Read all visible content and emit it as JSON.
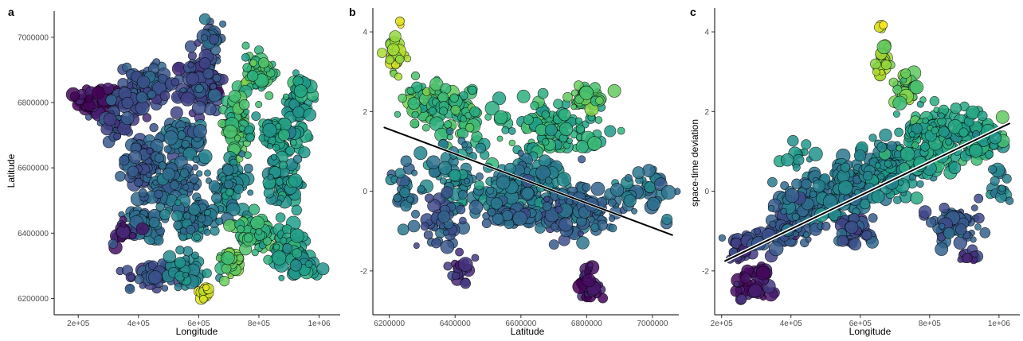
{
  "chart_data": [
    {
      "panel": "a",
      "type": "scatter",
      "xlabel": "Longitude",
      "ylabel": "Latitude",
      "xlim": [
        120000,
        1070000
      ],
      "ylim": [
        6150000,
        7080000
      ],
      "xticks": [
        200000,
        400000,
        600000,
        800000,
        1000000
      ],
      "xtick_labels": [
        "2e+05",
        "4e+05",
        "6e+05",
        "8e+05",
        "1e+06"
      ],
      "yticks": [
        6200000,
        6400000,
        6600000,
        6800000,
        7000000
      ],
      "ytick_labels": [
        "6200000",
        "6400000",
        "6600000",
        "6800000",
        "7000000"
      ],
      "color_scale": "viridis (by space-time deviation, -2.8 to 4.3)",
      "legend": "none",
      "grid": false,
      "groups": [
        {
          "x": 270000,
          "y": 6810000,
          "dx": 70000,
          "dy": 40000,
          "n": 55,
          "v": -2.6
        },
        {
          "x": 380000,
          "y": 6830000,
          "dx": 50000,
          "dy": 60000,
          "n": 45,
          "v": -1.3
        },
        {
          "x": 330000,
          "y": 6730000,
          "dx": 50000,
          "dy": 40000,
          "n": 40,
          "v": -1.1
        },
        {
          "x": 440000,
          "y": 6850000,
          "dx": 70000,
          "dy": 50000,
          "n": 55,
          "v": -1.0
        },
        {
          "x": 600000,
          "y": 6860000,
          "dx": 80000,
          "dy": 80000,
          "n": 120,
          "v": -1.2
        },
        {
          "x": 640000,
          "y": 7000000,
          "dx": 30000,
          "dy": 50000,
          "n": 30,
          "v": -0.6
        },
        {
          "x": 800000,
          "y": 6890000,
          "dx": 60000,
          "dy": 60000,
          "n": 60,
          "v": 2.0
        },
        {
          "x": 930000,
          "y": 6800000,
          "dx": 50000,
          "dy": 70000,
          "n": 40,
          "v": 1.0
        },
        {
          "x": 730000,
          "y": 6720000,
          "dx": 40000,
          "dy": 80000,
          "n": 70,
          "v": 2.1
        },
        {
          "x": 860000,
          "y": 6700000,
          "dx": 80000,
          "dy": 60000,
          "n": 60,
          "v": 1.2
        },
        {
          "x": 560000,
          "y": 6680000,
          "dx": 70000,
          "dy": 60000,
          "n": 70,
          "v": -0.3
        },
        {
          "x": 420000,
          "y": 6620000,
          "dx": 50000,
          "dy": 80000,
          "n": 70,
          "v": -0.9
        },
        {
          "x": 520000,
          "y": 6550000,
          "dx": 80000,
          "dy": 60000,
          "n": 80,
          "v": -0.4
        },
        {
          "x": 700000,
          "y": 6550000,
          "dx": 60000,
          "dy": 80000,
          "n": 80,
          "v": 0.3
        },
        {
          "x": 880000,
          "y": 6560000,
          "dx": 60000,
          "dy": 90000,
          "n": 60,
          "v": 0.9
        },
        {
          "x": 430000,
          "y": 6440000,
          "dx": 60000,
          "dy": 60000,
          "n": 55,
          "v": -0.3
        },
        {
          "x": 600000,
          "y": 6450000,
          "dx": 80000,
          "dy": 60000,
          "n": 70,
          "v": 0.1
        },
        {
          "x": 790000,
          "y": 6400000,
          "dx": 60000,
          "dy": 50000,
          "n": 70,
          "v": 1.8
        },
        {
          "x": 900000,
          "y": 6350000,
          "dx": 60000,
          "dy": 60000,
          "n": 55,
          "v": 1.3
        },
        {
          "x": 350000,
          "y": 6400000,
          "dx": 30000,
          "dy": 30000,
          "n": 25,
          "v": -2.1
        },
        {
          "x": 450000,
          "y": 6270000,
          "dx": 80000,
          "dy": 40000,
          "n": 45,
          "v": -1.1
        },
        {
          "x": 560000,
          "y": 6290000,
          "dx": 60000,
          "dy": 50000,
          "n": 40,
          "v": 0.5
        },
        {
          "x": 700000,
          "y": 6310000,
          "dx": 30000,
          "dy": 40000,
          "n": 30,
          "v": 2.6
        },
        {
          "x": 620000,
          "y": 6220000,
          "dx": 20000,
          "dy": 20000,
          "n": 18,
          "v": 3.9
        },
        {
          "x": 940000,
          "y": 6300000,
          "dx": 40000,
          "dy": 30000,
          "n": 25,
          "v": 1.0
        },
        {
          "x": 950000,
          "y": 6850000,
          "dx": 30000,
          "dy": 30000,
          "n": 20,
          "v": 1.4
        }
      ]
    },
    {
      "panel": "b",
      "type": "scatter",
      "xlabel": "Latitude",
      "ylabel": "",
      "xlim": [
        6150000,
        7080000
      ],
      "ylim": [
        -3.1,
        4.6
      ],
      "xticks": [
        6200000,
        6400000,
        6600000,
        6800000,
        7000000
      ],
      "xtick_labels": [
        "6200000",
        "6400000",
        "6600000",
        "6800000",
        "7000000"
      ],
      "yticks": [
        -2,
        0,
        2,
        4
      ],
      "ytick_labels": [
        "-2",
        "0",
        "2",
        "4"
      ],
      "trend_line": {
        "x": [
          6185000,
          7060000
        ],
        "y": [
          1.6,
          -1.1
        ]
      },
      "legend": "none",
      "grid": false,
      "groups": [
        {
          "x": 6220000,
          "y": 3.4,
          "dx": 25000,
          "dy": 0.5,
          "n": 30,
          "v": 3.4
        },
        {
          "x": 6235000,
          "y": 4.2,
          "dx": 5000,
          "dy": 0.1,
          "n": 3,
          "v": 4.2
        },
        {
          "x": 6310000,
          "y": 2.2,
          "dx": 60000,
          "dy": 0.6,
          "n": 70,
          "v": 2.1
        },
        {
          "x": 6420000,
          "y": 1.9,
          "dx": 70000,
          "dy": 0.6,
          "n": 60,
          "v": 1.9
        },
        {
          "x": 6700000,
          "y": 1.6,
          "dx": 150000,
          "dy": 0.6,
          "n": 120,
          "v": 1.6
        },
        {
          "x": 6420000,
          "y": 0.4,
          "dx": 90000,
          "dy": 0.7,
          "n": 70,
          "v": 0.4
        },
        {
          "x": 6620000,
          "y": 0.1,
          "dx": 120000,
          "dy": 0.6,
          "n": 130,
          "v": 0.1
        },
        {
          "x": 6760000,
          "y": -0.5,
          "dx": 120000,
          "dy": 0.6,
          "n": 130,
          "v": -0.5
        },
        {
          "x": 6980000,
          "y": 0.0,
          "dx": 70000,
          "dy": 0.5,
          "n": 40,
          "v": 0.0
        },
        {
          "x": 6250000,
          "y": 0.0,
          "dx": 40000,
          "dy": 0.8,
          "n": 30,
          "v": 0.0
        },
        {
          "x": 6360000,
          "y": -0.8,
          "dx": 60000,
          "dy": 0.5,
          "n": 40,
          "v": -0.8
        },
        {
          "x": 6560000,
          "y": -0.6,
          "dx": 80000,
          "dy": 0.3,
          "n": 40,
          "v": -0.6
        },
        {
          "x": 6420000,
          "y": -1.9,
          "dx": 30000,
          "dy": 0.3,
          "n": 20,
          "v": -1.9
        },
        {
          "x": 6810000,
          "y": -2.3,
          "dx": 30000,
          "dy": 0.4,
          "n": 35,
          "v": -2.3
        },
        {
          "x": 6800000,
          "y": 2.3,
          "dx": 80000,
          "dy": 0.3,
          "n": 30,
          "v": 2.3
        }
      ]
    },
    {
      "panel": "c",
      "type": "scatter",
      "xlabel": "Longitude",
      "ylabel": "space-time deviation",
      "xlim": [
        180000,
        1060000
      ],
      "ylim": [
        -3.1,
        4.6
      ],
      "xticks": [
        200000,
        400000,
        600000,
        800000,
        1000000
      ],
      "xtick_labels": [
        "2e+05",
        "4e+05",
        "6e+05",
        "8e+05",
        "1e+06"
      ],
      "yticks": [
        -2,
        0,
        2,
        4
      ],
      "ytick_labels": [
        "-2",
        "0",
        "2",
        "4"
      ],
      "trend_line": {
        "x": [
          210000,
          1030000
        ],
        "y": [
          -1.75,
          1.7
        ]
      },
      "legend": "none",
      "grid": false,
      "groups": [
        {
          "x": 300000,
          "y": -2.3,
          "dx": 60000,
          "dy": 0.4,
          "n": 50,
          "v": -2.3
        },
        {
          "x": 260000,
          "y": -1.4,
          "dx": 50000,
          "dy": 0.3,
          "n": 30,
          "v": -1.4
        },
        {
          "x": 380000,
          "y": -1.0,
          "dx": 60000,
          "dy": 0.4,
          "n": 60,
          "v": -1.0
        },
        {
          "x": 460000,
          "y": -0.3,
          "dx": 80000,
          "dy": 0.6,
          "n": 90,
          "v": -0.3
        },
        {
          "x": 560000,
          "y": 0.1,
          "dx": 80000,
          "dy": 0.6,
          "n": 110,
          "v": 0.1
        },
        {
          "x": 680000,
          "y": 0.6,
          "dx": 80000,
          "dy": 0.7,
          "n": 120,
          "v": 0.6
        },
        {
          "x": 800000,
          "y": 1.3,
          "dx": 80000,
          "dy": 0.7,
          "n": 120,
          "v": 1.3
        },
        {
          "x": 920000,
          "y": 1.4,
          "dx": 70000,
          "dy": 0.6,
          "n": 90,
          "v": 1.4
        },
        {
          "x": 880000,
          "y": -0.8,
          "dx": 70000,
          "dy": 0.5,
          "n": 50,
          "v": -0.8
        },
        {
          "x": 580000,
          "y": -1.0,
          "dx": 60000,
          "dy": 0.4,
          "n": 40,
          "v": -1.0
        },
        {
          "x": 660000,
          "y": 3.3,
          "dx": 20000,
          "dy": 0.4,
          "n": 25,
          "v": 3.3
        },
        {
          "x": 730000,
          "y": 2.6,
          "dx": 40000,
          "dy": 0.4,
          "n": 30,
          "v": 2.6
        },
        {
          "x": 660000,
          "y": 4.1,
          "dx": 10000,
          "dy": 0.15,
          "n": 4,
          "v": 4.1
        },
        {
          "x": 430000,
          "y": 0.9,
          "dx": 40000,
          "dy": 0.3,
          "n": 15,
          "v": 0.9
        },
        {
          "x": 1000000,
          "y": 0.2,
          "dx": 30000,
          "dy": 0.5,
          "n": 15,
          "v": 0.2
        },
        {
          "x": 920000,
          "y": -1.6,
          "dx": 30000,
          "dy": 0.2,
          "n": 10,
          "v": -1.6
        }
      ]
    }
  ],
  "panels": [
    {
      "label": "a",
      "xlabel": "Longitude",
      "ylabel": "Latitude"
    },
    {
      "label": "b",
      "xlabel": "Latitude",
      "ylabel": ""
    },
    {
      "label": "c",
      "xlabel": "Longitude",
      "ylabel": "space-time deviation"
    }
  ]
}
